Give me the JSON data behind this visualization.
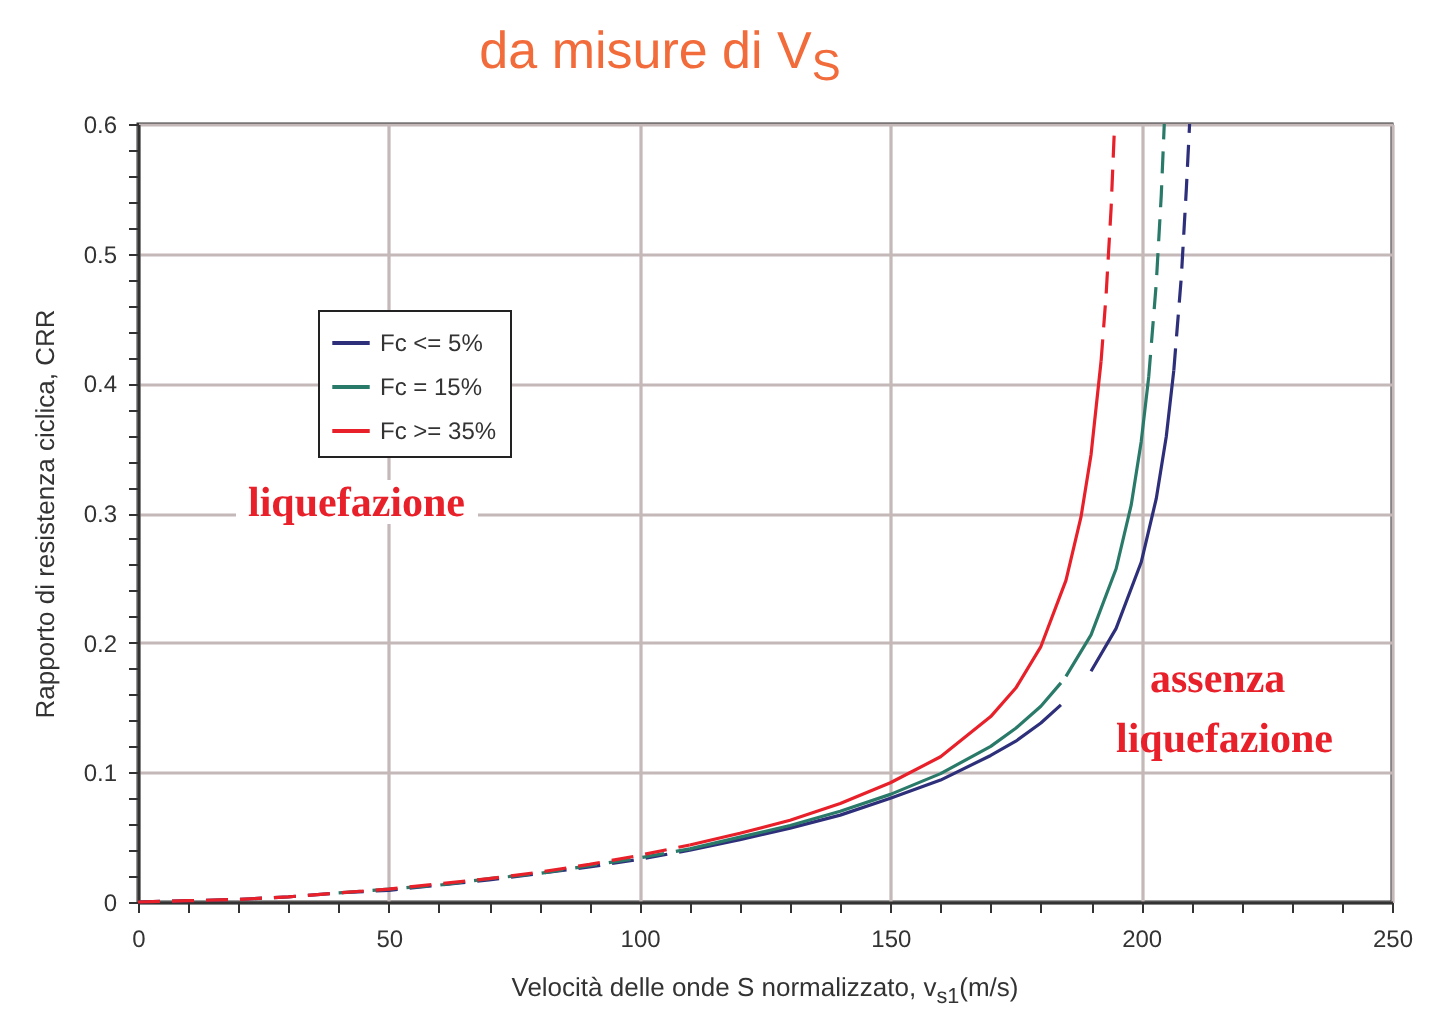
{
  "chart_data": {
    "type": "line",
    "title": "da misure di V$_{S}$",
    "xlabel": "Velocità delle onde S normalizzato, v$_{s1}$(m/s)",
    "ylabel": "Rapporto di resistenza ciclica, CRR",
    "xlim": [
      0,
      250
    ],
    "ylim": [
      0,
      0.6
    ],
    "xticks": [
      0,
      {
        "value": 10,
        "label": null
      },
      {
        "value": 20,
        "label": null
      },
      {
        "value": 30,
        "label": null
      },
      {
        "value": 40,
        "label": null
      },
      50,
      {
        "value": 60,
        "label": null
      },
      {
        "value": 70,
        "label": null
      },
      {
        "value": 80,
        "label": null
      },
      {
        "value": 90,
        "label": null
      },
      100,
      {
        "value": 110,
        "label": null
      },
      {
        "value": 120,
        "label": null
      },
      {
        "value": 130,
        "label": null
      },
      {
        "value": 140,
        "label": null
      },
      150,
      {
        "value": 160,
        "label": null
      },
      {
        "value": 170,
        "label": null
      },
      {
        "value": 180,
        "label": null
      },
      {
        "value": 190,
        "label": null
      },
      200,
      {
        "value": 210,
        "label": null
      },
      {
        "value": 220,
        "label": null
      },
      {
        "value": 230,
        "label": null
      },
      {
        "value": 240,
        "label": null
      },
      250
    ],
    "yticks": [
      0,
      {
        "value": 0.02,
        "label": null
      },
      {
        "value": 0.04,
        "label": null
      },
      {
        "value": 0.06,
        "label": null
      },
      {
        "value": 0.08,
        "label": null
      },
      0.1,
      {
        "value": 0.12,
        "label": null
      },
      {
        "value": 0.14,
        "label": null
      },
      {
        "value": 0.16,
        "label": null
      },
      {
        "value": 0.18,
        "label": null
      },
      0.2,
      {
        "value": 0.22,
        "label": null
      },
      {
        "value": 0.24,
        "label": null
      },
      {
        "value": 0.26,
        "label": null
      },
      {
        "value": 0.28,
        "label": null
      },
      0.3,
      {
        "value": 0.32,
        "label": null
      },
      {
        "value": 0.34,
        "label": null
      },
      {
        "value": 0.36,
        "label": null
      },
      {
        "value": 0.38,
        "label": null
      },
      0.4,
      {
        "value": 0.42,
        "label": null
      },
      {
        "value": 0.44,
        "label": null
      },
      {
        "value": 0.46,
        "label": null
      },
      {
        "value": 0.48,
        "label": null
      },
      0.5,
      {
        "value": 0.52,
        "label": null
      },
      {
        "value": 0.54,
        "label": null
      },
      {
        "value": 0.56,
        "label": null
      },
      {
        "value": 0.58,
        "label": null
      },
      0.6
    ],
    "grid": true,
    "legend": "top left",
    "annotations": [
      "liquefazione",
      "assenza",
      "liquefazione"
    ],
    "series": [
      {
        "name": "Fc <= 5%",
        "color": "#2e2f7a",
        "line_style": "solid",
        "x": [
          110,
          120,
          130,
          140,
          150,
          160,
          170,
          175,
          180,
          184
        ],
        "values": [
          0.04,
          0.048,
          0.057,
          0.067,
          0.08,
          0.094,
          0.113,
          0.124,
          0.138,
          0.152
        ]
      },
      {
        "name": "Fc = 15%",
        "color": "#2a7a6a",
        "line_style": "solid",
        "x": [
          110,
          120,
          130,
          140,
          150,
          160,
          170,
          175,
          180,
          184
        ],
        "values": [
          0.041,
          0.05,
          0.059,
          0.07,
          0.083,
          0.099,
          0.12,
          0.134,
          0.151,
          0.169
        ]
      },
      {
        "name": "Fc >= 35%",
        "color": "#e8202a",
        "line_style": "solid",
        "x": [
          110,
          120,
          130,
          140,
          150,
          160,
          170,
          175,
          180,
          185,
          188,
          190,
          192
        ],
        "values": [
          0.044,
          0.053,
          0.063,
          0.076,
          0.092,
          0.112,
          0.143,
          0.165,
          0.197,
          0.248,
          0.297,
          0.345,
          0.417
        ]
      },
      {
        "color": "#2e2f7a",
        "line_style": "dashed",
        "x": [
          0,
          10,
          20,
          30,
          40,
          50,
          60,
          70,
          80,
          90,
          100,
          110
        ],
        "values": [
          0,
          0.001,
          0.002,
          0.004,
          0.007,
          0.009,
          0.013,
          0.017,
          0.022,
          0.027,
          0.033,
          0.04
        ]
      },
      {
        "color": "#2e2f7a",
        "line_style": "solid",
        "x": [
          190,
          195,
          200,
          203,
          205,
          206.5
        ],
        "values": [
          0.178,
          0.211,
          0.262,
          0.311,
          0.359,
          0.41
        ]
      },
      {
        "color": "#2e2f7a",
        "line_style": "dashed",
        "x": [
          206.5,
          208,
          209,
          209.65
        ],
        "values": [
          0.41,
          0.482,
          0.55,
          0.6
        ]
      },
      {
        "color": "#2a7a6a",
        "line_style": "dashed",
        "x": [
          40,
          50,
          60,
          70,
          80,
          90,
          100,
          110
        ],
        "values": [
          0.007,
          0.01,
          0.013,
          0.018,
          0.022,
          0.028,
          0.034,
          0.041
        ]
      },
      {
        "color": "#2a7a6a",
        "line_style": "solid",
        "x": [
          185,
          190,
          195,
          198,
          200,
          201.5
        ],
        "values": [
          0.174,
          0.206,
          0.257,
          0.306,
          0.355,
          0.405
        ]
      },
      {
        "color": "#2a7a6a",
        "line_style": "dashed",
        "x": [
          201.5,
          203,
          204,
          204.6
        ],
        "values": [
          0.405,
          0.477,
          0.545,
          0.6
        ]
      },
      {
        "color": "#e8202a",
        "line_style": "dashed",
        "x": [
          0,
          10,
          20,
          30,
          40,
          50,
          60,
          70,
          80,
          90,
          100,
          110
        ],
        "values": [
          0,
          0.001,
          0.002,
          0.004,
          0.007,
          0.01,
          0.014,
          0.018,
          0.023,
          0.029,
          0.036,
          0.044
        ]
      },
      {
        "color": "#e8202a",
        "line_style": "dashed",
        "x": [
          192,
          193,
          194,
          194.7
        ],
        "values": [
          0.417,
          0.468,
          0.535,
          0.6
        ]
      }
    ]
  }
}
